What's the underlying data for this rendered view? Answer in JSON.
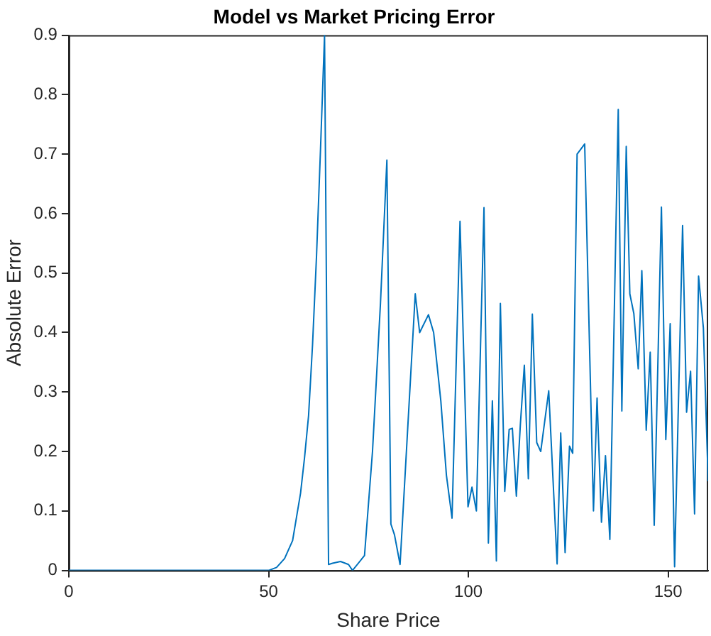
{
  "chart_data": {
    "type": "line",
    "title": "Model vs Market Pricing Error",
    "xlabel": "Share Price",
    "ylabel": "Absolute Error",
    "xlim": [
      0,
      160
    ],
    "xticks": [
      0,
      50,
      100,
      150
    ],
    "ylim": [
      0,
      0.9
    ],
    "yticks": [
      0,
      0.1,
      0.2,
      0.3,
      0.4,
      0.5,
      0.6,
      0.7,
      0.8,
      0.9
    ],
    "grid": false,
    "legend": false,
    "marker": "none",
    "line_style": "solid",
    "series": [
      {
        "color": "#0072bd",
        "x": [
          0,
          50,
          52,
          54,
          56,
          57,
          58,
          59,
          60,
          61,
          62,
          63,
          64,
          65,
          66,
          68,
          70,
          71,
          74,
          76,
          78,
          79.6,
          80.6,
          81.5,
          82.9,
          86.7,
          87.8,
          90,
          91.3,
          93.1,
          94.5,
          95.9,
          97.9,
          99.9,
          100.9,
          102,
          103.9,
          105,
          106,
          107,
          108,
          109.1,
          110.2,
          111,
          112,
          113,
          114,
          115,
          116,
          117.1,
          118.1,
          120.1,
          122.2,
          123.1,
          124.2,
          125.3,
          126.1,
          127.2,
          129.1,
          131.3,
          132.2,
          133.3,
          134.3,
          135.4,
          137.5,
          138.4,
          139.5,
          140.4,
          141.4,
          142.5,
          143.4,
          144.5,
          145.5,
          146.5,
          148.3,
          149.4,
          150.5,
          151.6,
          153.6,
          154.6,
          155.6,
          156.6,
          157.6,
          158.8,
          160
        ],
        "values": [
          0,
          0,
          0.005,
          0.02,
          0.05,
          0.09,
          0.13,
          0.19,
          0.26,
          0.38,
          0.53,
          0.71,
          0.9,
          0.01,
          0.012,
          0.015,
          0.01,
          0,
          0.025,
          0.2,
          0.45,
          0.69,
          0.078,
          0.06,
          0.01,
          0.465,
          0.4,
          0.43,
          0.4,
          0.285,
          0.16,
          0.088,
          0.587,
          0.107,
          0.14,
          0.1,
          0.61,
          0.046,
          0.285,
          0.016,
          0.449,
          0.133,
          0.237,
          0.239,
          0.125,
          0.245,
          0.345,
          0.154,
          0.431,
          0.215,
          0.2,
          0.302,
          0.011,
          0.231,
          0.03,
          0.209,
          0.197,
          0.7,
          0.717,
          0.1,
          0.29,
          0.081,
          0.193,
          0.052,
          0.775,
          0.268,
          0.713,
          0.465,
          0.432,
          0.339,
          0.504,
          0.236,
          0.367,
          0.076,
          0.611,
          0.22,
          0.415,
          0.006,
          0.58,
          0.266,
          0.335,
          0.095,
          0.495,
          0.408,
          0.15
        ]
      }
    ]
  }
}
